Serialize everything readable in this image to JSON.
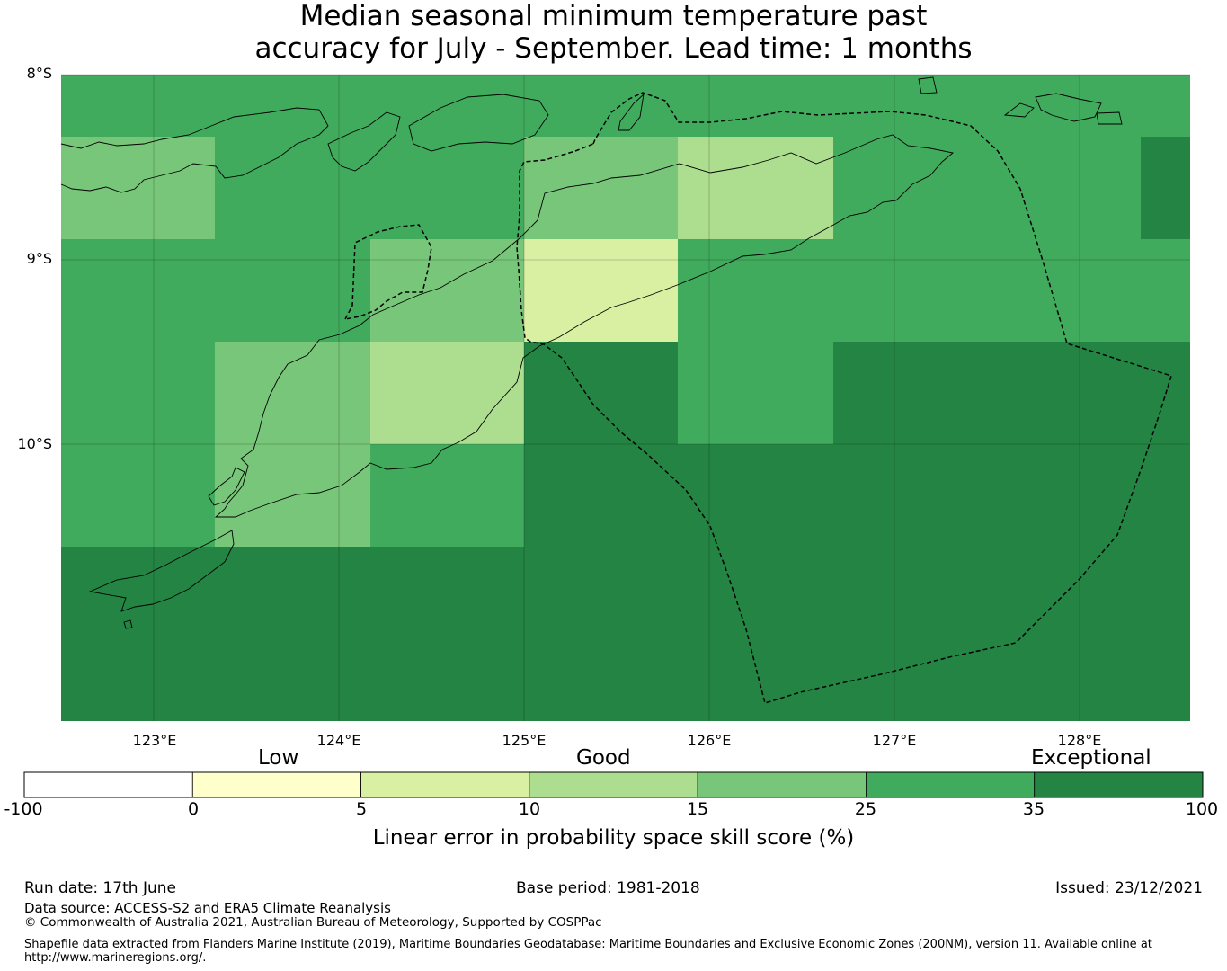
{
  "title": {
    "line1": "Median seasonal minimum temperature past",
    "line2": "accuracy for July - September. Lead time: 1 months"
  },
  "map": {
    "lon_range": [
      122.5,
      128.6
    ],
    "lat_range": [
      -8.0,
      -11.5
    ],
    "lat_labels": [
      "8°S",
      "9°S",
      "10°S"
    ],
    "lon_labels": [
      "123°E",
      "124°E",
      "125°E",
      "126°E",
      "127°E",
      "128°E"
    ],
    "grid": true,
    "grid_cells_note": "skill category per cell, rows from north to south",
    "cells": [
      {
        "row": 0,
        "lon_start": 122.5,
        "lon_end": 128.6,
        "category": 5
      },
      {
        "row": 1,
        "lon_start": 122.5,
        "lon_end": 123.33,
        "category": 4
      },
      {
        "row": 1,
        "lon_start": 123.33,
        "lon_end": 125.0,
        "category": 5
      },
      {
        "row": 1,
        "lon_start": 125.0,
        "lon_end": 125.83,
        "category": 4
      },
      {
        "row": 1,
        "lon_start": 125.83,
        "lon_end": 126.67,
        "category": 3
      },
      {
        "row": 1,
        "lon_start": 126.67,
        "lon_end": 128.33,
        "category": 5
      },
      {
        "row": 1,
        "lon_start": 128.33,
        "lon_end": 128.6,
        "category": 6
      },
      {
        "row": 2,
        "lon_start": 122.5,
        "lon_end": 124.17,
        "category": 5
      },
      {
        "row": 2,
        "lon_start": 124.17,
        "lon_end": 125.0,
        "category": 4
      },
      {
        "row": 2,
        "lon_start": 125.0,
        "lon_end": 125.83,
        "category": 2
      },
      {
        "row": 2,
        "lon_start": 125.83,
        "lon_end": 128.6,
        "category": 5
      },
      {
        "row": 3,
        "lon_start": 122.5,
        "lon_end": 123.33,
        "category": 5
      },
      {
        "row": 3,
        "lon_start": 123.33,
        "lon_end": 124.17,
        "category": 4
      },
      {
        "row": 3,
        "lon_start": 124.17,
        "lon_end": 125.0,
        "category": 3
      },
      {
        "row": 3,
        "lon_start": 125.0,
        "lon_end": 125.83,
        "category": 6
      },
      {
        "row": 3,
        "lon_start": 125.83,
        "lon_end": 126.67,
        "category": 5
      },
      {
        "row": 3,
        "lon_start": 126.67,
        "lon_end": 128.6,
        "category": 6
      },
      {
        "row": 4,
        "lon_start": 122.5,
        "lon_end": 123.33,
        "category": 5
      },
      {
        "row": 4,
        "lon_start": 123.33,
        "lon_end": 124.17,
        "category": 4
      },
      {
        "row": 4,
        "lon_start": 124.17,
        "lon_end": 125.0,
        "category": 5
      },
      {
        "row": 4,
        "lon_start": 125.0,
        "lon_end": 128.6,
        "category": 6
      },
      {
        "row": 5,
        "lon_start": 122.5,
        "lon_end": 128.6,
        "category": 6
      },
      {
        "row": 6,
        "lon_start": 122.5,
        "lon_end": 128.6,
        "category": 6
      }
    ]
  },
  "colorbar": {
    "categories": [
      "Low",
      "Good",
      "Exceptional"
    ],
    "ticks": [
      "-100",
      "0",
      "5",
      "10",
      "15",
      "25",
      "35",
      "100"
    ],
    "colors": [
      "#ffffff",
      "#ffffcc",
      "#d9f0a3",
      "#addd8e",
      "#78c679",
      "#41ab5d",
      "#238443"
    ],
    "label": "Linear error in probability space skill score (%)"
  },
  "footer": {
    "run_date": "Run date: 17th June",
    "base_period": "Base period: 1981-2018",
    "issued": "Issued: 23/12/2021",
    "data_source": "Data source: ACCESS-S2 and ERA5 Climate Reanalysis",
    "copyright": "© Commonwealth of Australia 2021, Australian Bureau of Meteorology, Supported by COSPPac",
    "shapefile_line1": "Shapefile data extracted from Flanders Marine Institute (2019), Maritime Boundaries Geodatabase: Maritime Boundaries and Exclusive Economic Zones (200NM), version 11. Available online at",
    "shapefile_line2": "http://www.marineregions.org/."
  }
}
